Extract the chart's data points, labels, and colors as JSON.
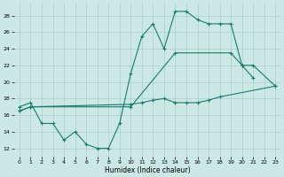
{
  "xlabel": "Humidex (Indice chaleur)",
  "bg_color": "#cce8e4",
  "grid_color": "#aacfcc",
  "line_color": "#1a7a6e",
  "xlim": [
    -0.5,
    23.5
  ],
  "ylim": [
    11,
    29.5
  ],
  "yticks": [
    12,
    14,
    16,
    18,
    20,
    22,
    24,
    26,
    28
  ],
  "xticks": [
    0,
    1,
    2,
    3,
    4,
    5,
    6,
    7,
    8,
    9,
    10,
    11,
    12,
    13,
    14,
    15,
    16,
    17,
    18,
    19,
    20,
    21,
    22,
    23
  ],
  "line1_x": [
    0,
    1,
    2,
    3,
    4,
    5,
    6,
    7,
    8,
    9,
    10,
    11,
    12,
    13,
    14,
    15,
    16,
    17,
    18,
    19,
    20,
    21
  ],
  "line1_y": [
    17.0,
    17.5,
    15.0,
    15.0,
    13.0,
    14.0,
    12.5,
    12.0,
    12.0,
    15.0,
    21.0,
    25.5,
    27.0,
    24.0,
    28.5,
    28.5,
    27.5,
    27.0,
    27.0,
    27.0,
    22.0,
    20.5
  ],
  "line2_x": [
    0,
    1,
    10,
    11,
    12,
    13,
    14,
    15,
    16,
    17,
    18,
    23
  ],
  "line2_y": [
    16.5,
    17.0,
    17.3,
    17.5,
    17.8,
    18.0,
    17.5,
    17.5,
    17.5,
    17.8,
    18.2,
    19.5
  ],
  "line3_x": [
    0,
    1,
    10,
    14,
    19,
    20,
    21,
    23
  ],
  "line3_y": [
    16.5,
    17.0,
    17.0,
    23.5,
    23.5,
    22.0,
    22.0,
    19.5
  ]
}
